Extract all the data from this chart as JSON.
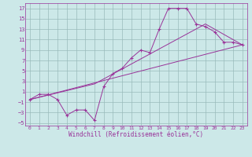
{
  "title": "",
  "xlabel": "Windchill (Refroidissement éolien,°C)",
  "bg_color": "#cce8e8",
  "grid_color": "#99bbbb",
  "line_color": "#993399",
  "xlim": [
    -0.5,
    23.5
  ],
  "ylim": [
    -5.5,
    18.0
  ],
  "xticks": [
    0,
    1,
    2,
    3,
    4,
    5,
    6,
    7,
    8,
    9,
    10,
    11,
    12,
    13,
    14,
    15,
    16,
    17,
    18,
    19,
    20,
    21,
    22,
    23
  ],
  "yticks": [
    -5,
    -3,
    -1,
    1,
    3,
    5,
    7,
    9,
    11,
    13,
    15,
    17
  ],
  "line1_x": [
    0,
    1,
    2,
    3,
    4,
    5,
    6,
    7,
    8,
    9,
    10,
    11,
    12,
    13,
    14,
    15,
    16,
    17,
    18,
    19,
    20,
    21,
    22,
    23
  ],
  "line1_y": [
    -0.5,
    0.5,
    0.5,
    -0.5,
    -3.5,
    -2.5,
    -2.5,
    -4.5,
    2.0,
    4.5,
    5.5,
    7.5,
    9.0,
    8.5,
    13.0,
    17.0,
    17.0,
    17.0,
    14.0,
    13.5,
    12.5,
    10.5,
    10.5,
    10.0
  ],
  "line2_x": [
    0,
    23
  ],
  "line2_y": [
    -0.5,
    10.0
  ],
  "line3_x": [
    0,
    7,
    19,
    23
  ],
  "line3_y": [
    -0.5,
    2.5,
    14.0,
    10.0
  ]
}
